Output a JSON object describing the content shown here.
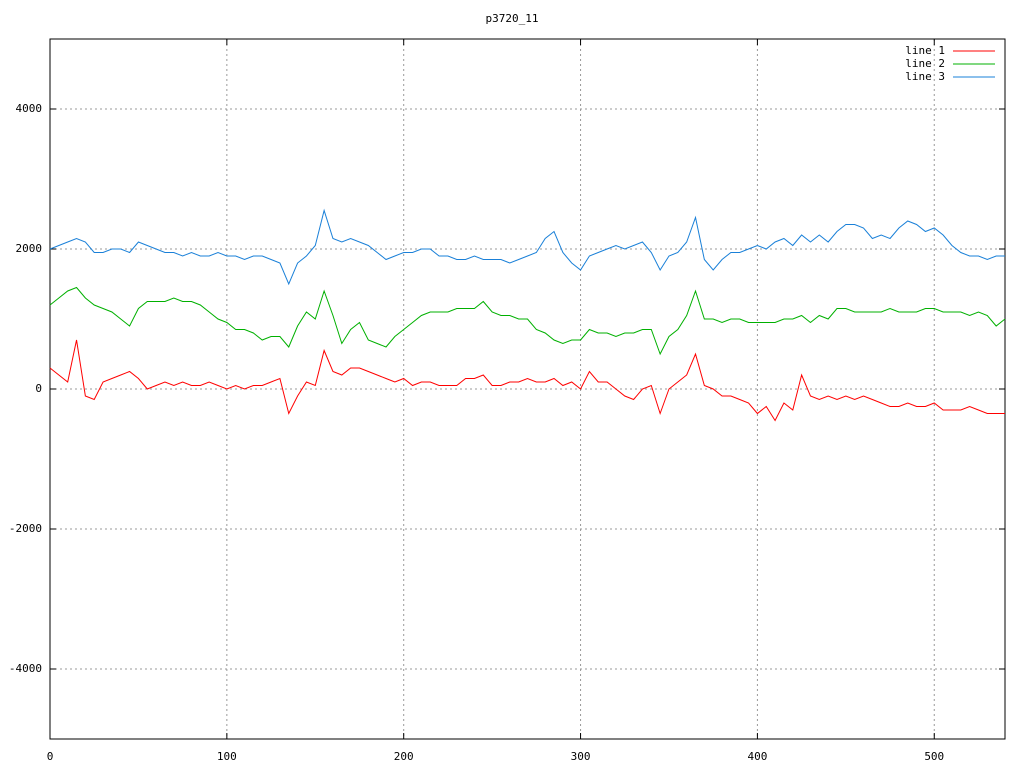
{
  "chart_data": {
    "type": "line",
    "title": "p3720_11",
    "x": [
      0,
      5,
      10,
      15,
      20,
      25,
      30,
      35,
      40,
      45,
      50,
      55,
      60,
      65,
      70,
      75,
      80,
      85,
      90,
      95,
      100,
      105,
      110,
      115,
      120,
      125,
      130,
      135,
      140,
      145,
      150,
      155,
      160,
      165,
      170,
      175,
      180,
      185,
      190,
      195,
      200,
      205,
      210,
      215,
      220,
      225,
      230,
      235,
      240,
      245,
      250,
      255,
      260,
      265,
      270,
      275,
      280,
      285,
      290,
      295,
      300,
      305,
      310,
      315,
      320,
      325,
      330,
      335,
      340,
      345,
      350,
      355,
      360,
      365,
      370,
      375,
      380,
      385,
      390,
      395,
      400,
      405,
      410,
      415,
      420,
      425,
      430,
      435,
      440,
      445,
      450,
      455,
      460,
      465,
      470,
      475,
      480,
      485,
      490,
      495,
      500,
      505,
      510,
      515,
      520,
      525,
      530,
      535,
      540
    ],
    "series": [
      {
        "name": "line 1",
        "color": "#ff0000",
        "values": [
          300,
          200,
          100,
          700,
          -100,
          -150,
          100,
          150,
          200,
          250,
          150,
          0,
          50,
          100,
          50,
          100,
          50,
          50,
          100,
          50,
          0,
          50,
          0,
          50,
          50,
          100,
          150,
          -350,
          -100,
          100,
          50,
          550,
          250,
          200,
          300,
          300,
          250,
          200,
          150,
          100,
          150,
          50,
          100,
          100,
          50,
          50,
          50,
          150,
          150,
          200,
          50,
          50,
          100,
          100,
          150,
          100,
          100,
          150,
          50,
          100,
          0,
          250,
          100,
          100,
          0,
          -100,
          -150,
          0,
          50,
          -350,
          0,
          100,
          200,
          500,
          50,
          0,
          -100,
          -100,
          -150,
          -200,
          -350,
          -250,
          -450,
          -200,
          -300,
          200,
          -100,
          -150,
          -100,
          -150,
          -100,
          -150,
          -100,
          -150,
          -200,
          -250,
          -250,
          -200,
          -250,
          -250,
          -200,
          -300,
          -300,
          -300,
          -250,
          -300,
          -350,
          -350,
          -350
        ]
      },
      {
        "name": "line 2",
        "color": "#00b000",
        "values": [
          1200,
          1300,
          1400,
          1450,
          1300,
          1200,
          1150,
          1100,
          1000,
          900,
          1150,
          1250,
          1250,
          1250,
          1300,
          1250,
          1250,
          1200,
          1100,
          1000,
          950,
          850,
          850,
          800,
          700,
          750,
          750,
          600,
          900,
          1100,
          1000,
          1400,
          1050,
          650,
          850,
          950,
          700,
          650,
          600,
          750,
          850,
          950,
          1050,
          1100,
          1100,
          1100,
          1150,
          1150,
          1150,
          1250,
          1100,
          1050,
          1050,
          1000,
          1000,
          850,
          800,
          700,
          650,
          700,
          700,
          850,
          800,
          800,
          750,
          800,
          800,
          850,
          850,
          500,
          750,
          850,
          1050,
          1400,
          1000,
          1000,
          950,
          1000,
          1000,
          950,
          950,
          950,
          950,
          1000,
          1000,
          1050,
          950,
          1050,
          1000,
          1150,
          1150,
          1100,
          1100,
          1100,
          1100,
          1150,
          1100,
          1100,
          1100,
          1150,
          1150,
          1100,
          1100,
          1100,
          1050,
          1100,
          1050,
          900,
          1000
        ]
      },
      {
        "name": "line 3",
        "color": "#1a80d8",
        "values": [
          2000,
          2050,
          2100,
          2150,
          2100,
          1950,
          1950,
          2000,
          2000,
          1950,
          2100,
          2050,
          2000,
          1950,
          1950,
          1900,
          1950,
          1900,
          1900,
          1950,
          1900,
          1900,
          1850,
          1900,
          1900,
          1850,
          1800,
          1500,
          1800,
          1900,
          2050,
          2550,
          2150,
          2100,
          2150,
          2100,
          2050,
          1950,
          1850,
          1900,
          1950,
          1950,
          2000,
          2000,
          1900,
          1900,
          1850,
          1850,
          1900,
          1850,
          1850,
          1850,
          1800,
          1850,
          1900,
          1950,
          2150,
          2250,
          1950,
          1800,
          1700,
          1900,
          1950,
          2000,
          2050,
          2000,
          2050,
          2100,
          1950,
          1700,
          1900,
          1950,
          2100,
          2450,
          1850,
          1700,
          1850,
          1950,
          1950,
          2000,
          2050,
          2000,
          2100,
          2150,
          2050,
          2200,
          2100,
          2200,
          2100,
          2250,
          2350,
          2350,
          2300,
          2150,
          2200,
          2150,
          2300,
          2400,
          2350,
          2250,
          2300,
          2200,
          2050,
          1950,
          1900,
          1900,
          1850,
          1900,
          1900
        ]
      }
    ],
    "xlim": [
      0,
      540
    ],
    "ylim": [
      -5000,
      5000
    ],
    "xticks": [
      0,
      100,
      200,
      300,
      400,
      500
    ],
    "yticks": [
      -4000,
      -2000,
      0,
      2000,
      4000
    ],
    "grid": true,
    "legend": "top-right"
  }
}
